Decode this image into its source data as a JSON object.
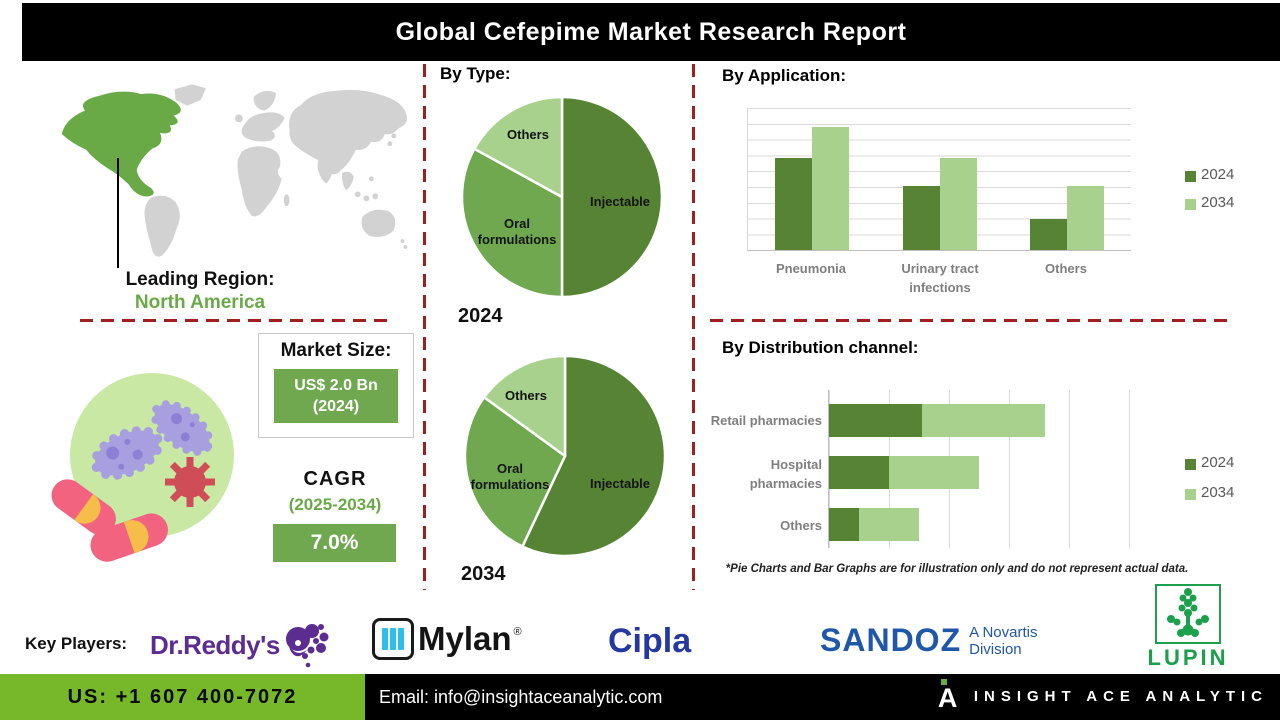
{
  "title": "Global Cefepime Market Research Report",
  "sections": {
    "by_type": "By Type:",
    "by_application": "By Application:",
    "by_distribution": "By Distribution channel:"
  },
  "leading_region": {
    "label": "Leading Region:",
    "value": "North America"
  },
  "market_size": {
    "label": "Market Size:",
    "value": "US$ 2.0 Bn",
    "year": "(2024)"
  },
  "cagr": {
    "label": "CAGR",
    "period": "(2025-2034)",
    "value": "7.0%"
  },
  "disclaimer": "*Pie Charts and Bar Graphs are for illustration only and do not represent actual data.",
  "chart_data": [
    {
      "type": "pie",
      "title": "By Type - 2024",
      "year": "2024",
      "labels": [
        "Injectable",
        "Oral formulations",
        "Others"
      ],
      "values": [
        50,
        33,
        17
      ],
      "colors": [
        "#568434",
        "#6FA84F",
        "#A9D18E"
      ],
      "note": "illustrative only"
    },
    {
      "type": "pie",
      "title": "By Type - 2034",
      "year": "2034",
      "labels": [
        "Injectable",
        "Oral formulations",
        "Others"
      ],
      "values": [
        57,
        28,
        15
      ],
      "colors": [
        "#568434",
        "#6FA84F",
        "#A9D18E"
      ],
      "note": "illustrative only"
    },
    {
      "type": "bar",
      "title": "By Application",
      "categories": [
        "Pneumonia",
        "Urinary tract infections",
        "Others"
      ],
      "series": [
        {
          "name": "2024",
          "color": "#568434",
          "values": [
            65,
            45,
            22
          ]
        },
        {
          "name": "2034",
          "color": "#A9D18E",
          "values": [
            87,
            65,
            45
          ]
        }
      ],
      "ylim": [
        0,
        100
      ],
      "grid": true,
      "legend_position": "right",
      "note": "illustrative only, no axis labels shown"
    },
    {
      "type": "bar-horizontal-stacked",
      "title": "By Distribution channel",
      "categories": [
        "Retail pharmacies",
        "Hospital pharmacies",
        "Others"
      ],
      "series": [
        {
          "name": "2024",
          "color": "#568434",
          "values": [
            31,
            20,
            10
          ]
        },
        {
          "name": "2034",
          "color": "#A9D18E",
          "values": [
            41,
            30,
            20
          ]
        }
      ],
      "xlim": [
        0,
        100
      ],
      "grid": true,
      "legend_position": "right",
      "note": "illustrative only, no axis labels shown"
    }
  ],
  "key_players": {
    "label": "Key Players:",
    "companies": [
      "Dr.Reddy's",
      "Mylan",
      "Cipla",
      "SANDOZ",
      "LUPIN"
    ],
    "mylan_reg": "®",
    "sandoz_division_line1": "A Novartis",
    "sandoz_division_line2": "Division"
  },
  "footer": {
    "phone": "US: +1 607 400-7072",
    "email": "Email: info@insightaceanalytic.com",
    "brand": "INSIGHT ACE ANALYTIC"
  },
  "colors": {
    "dark_green": "#568434",
    "mid_green": "#6FA84F",
    "light_green": "#A9D18E",
    "map_region_green": "#6AAA46",
    "footer_green": "#76B82A",
    "dashed_red": "#A02020",
    "dr_reddys_purple": "#5C2D91",
    "mylan_cyan": "#2BBFE9",
    "cipla_blue": "#2438A0",
    "sandoz_blue": "#1F58A8",
    "lupin_green": "#1CA04C"
  }
}
